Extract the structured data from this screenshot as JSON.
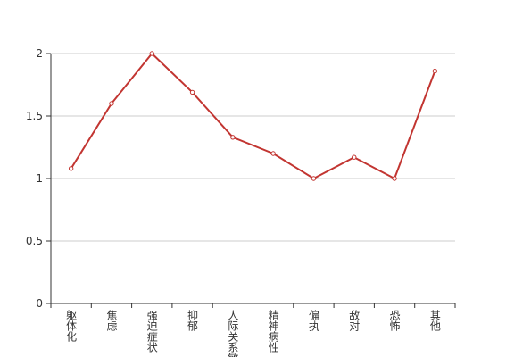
{
  "chart_data": {
    "type": "line",
    "categories": [
      "躯体化",
      "焦虑",
      "强迫症状",
      "抑郁",
      "人际关系敏感",
      "精神病性",
      "偏执",
      "敌对",
      "恐怖",
      "其他"
    ],
    "values": [
      1.08,
      1.6,
      2.0,
      1.69,
      1.33,
      1.2,
      1.0,
      1.17,
      1.0,
      1.86
    ],
    "color": "#c23531",
    "ylim": [
      0,
      2
    ],
    "yticks": [
      0,
      0.5,
      1,
      1.5,
      2
    ],
    "grid": true
  }
}
